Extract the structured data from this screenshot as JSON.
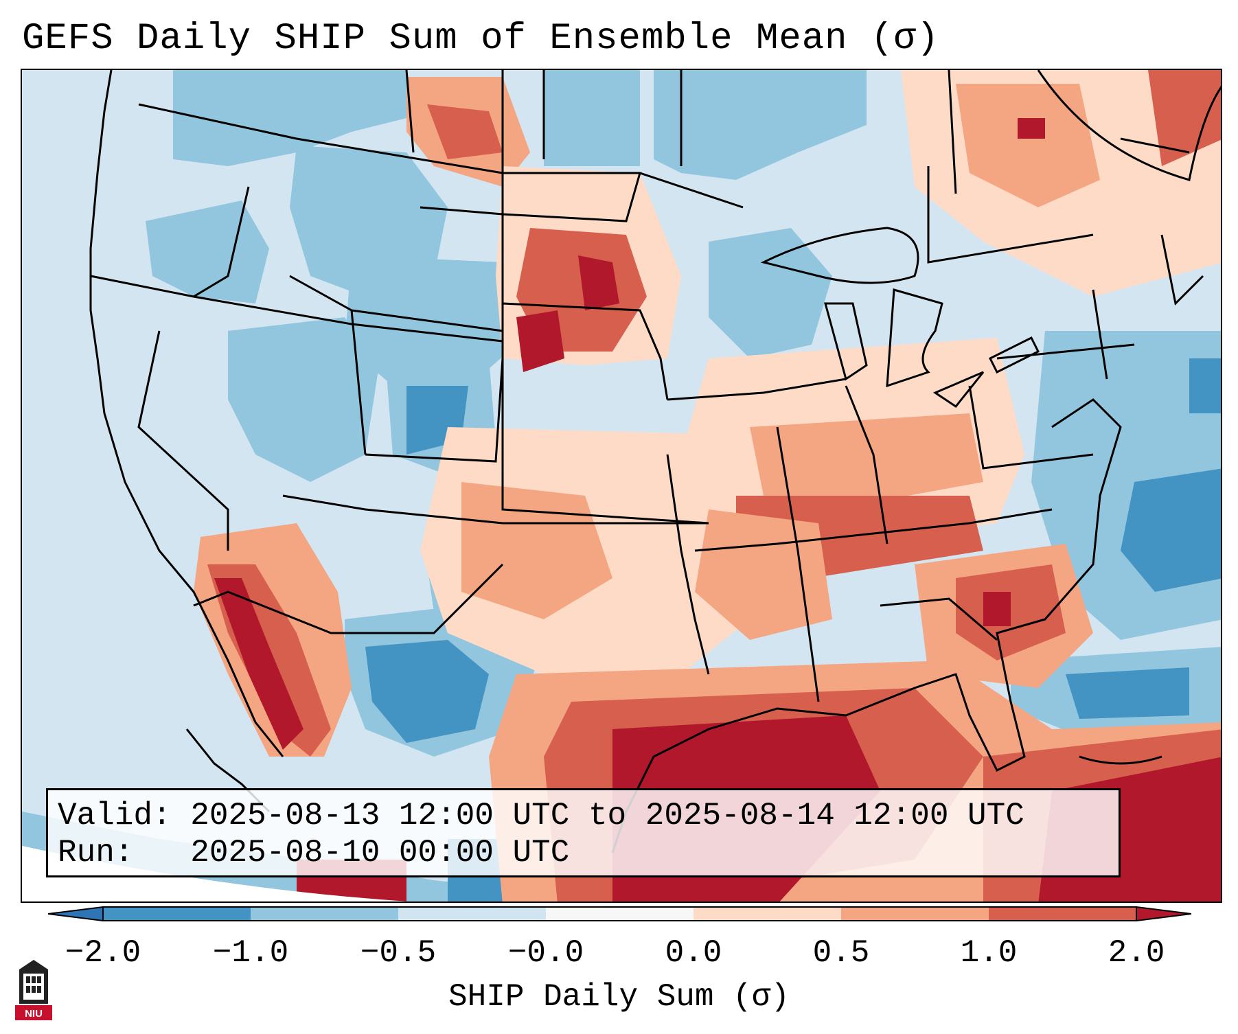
{
  "title": "GEFS Daily SHIP Sum of Ensemble Mean (σ)",
  "info": {
    "valid_label": "Valid:",
    "valid_value": "2025-08-13 12:00 UTC to 2025-08-14 12:00 UTC",
    "run_label": "Run:",
    "run_value": "2025-08-10 00:00 UTC"
  },
  "colorbar": {
    "label": "SHIP Daily Sum (σ)",
    "ticks": [
      "−2.0",
      "−1.0",
      "−0.5",
      "−0.0",
      "0.0",
      "0.5",
      "1.0",
      "2.0"
    ],
    "colors": [
      "#2f75b5",
      "#4393c3",
      "#92c5de",
      "#d1e5f0",
      "#f7f7f7",
      "#fddbc7",
      "#f4a582",
      "#d6604d",
      "#b2182b"
    ]
  },
  "logo": {
    "text": "NIU"
  },
  "colors": {
    "ocean_base": "#d3e5f1",
    "border": "#000000"
  }
}
